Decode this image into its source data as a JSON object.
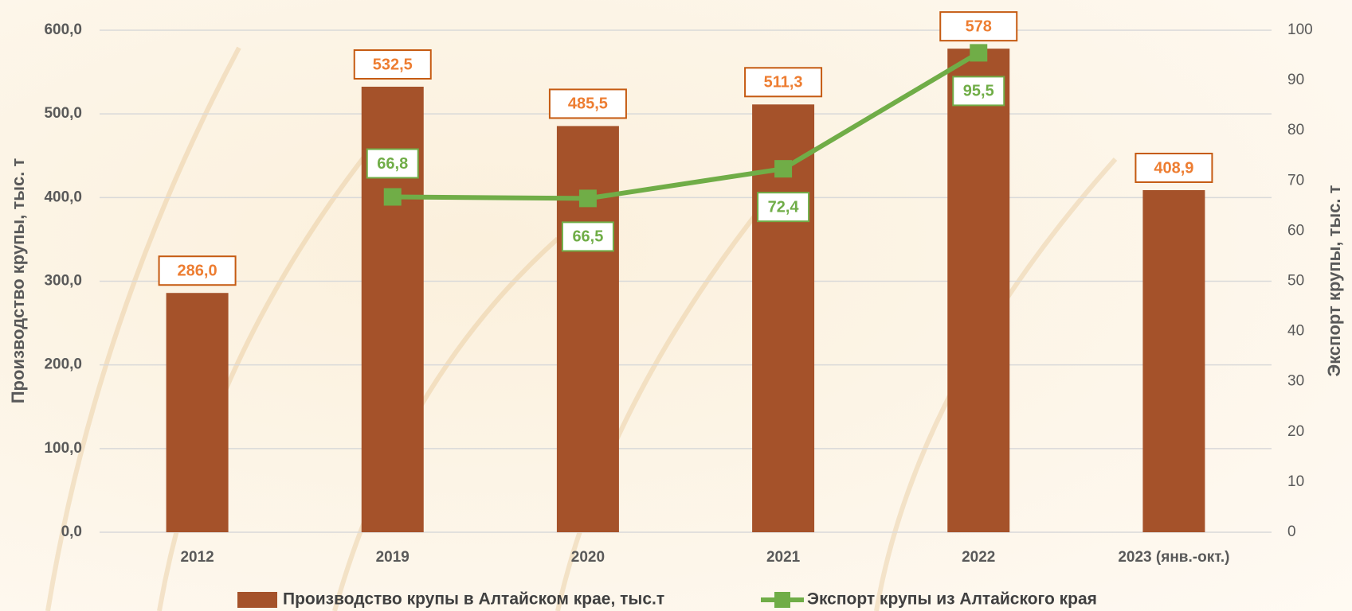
{
  "chart_data": {
    "type": "bar",
    "categories": [
      "2012",
      "2019",
      "2020",
      "2021",
      "2022",
      "2023 (янв.-окт.)"
    ],
    "ylabel": "Производство крупы, тыс. т",
    "y2label": "Экспорт крупы, тыс. т",
    "ylim": [
      0,
      600
    ],
    "yticks": [
      {
        "value": 0,
        "label": "0,0"
      },
      {
        "value": 100,
        "label": "100,0"
      },
      {
        "value": 200,
        "label": "200,0"
      },
      {
        "value": 300,
        "label": "300,0"
      },
      {
        "value": 400,
        "label": "400,0"
      },
      {
        "value": 500,
        "label": "500,0"
      },
      {
        "value": 600,
        "label": "600,0"
      }
    ],
    "y2lim": [
      0,
      100
    ],
    "y2ticks": [
      0,
      10,
      20,
      30,
      40,
      50,
      60,
      70,
      80,
      90,
      100
    ],
    "grid": true,
    "legend": "bottom",
    "series": [
      {
        "name": "Производство крупы в Алтайском крае, тыс.т",
        "type": "bar",
        "color": "#a5522a",
        "values": [
          286.0,
          532.5,
          485.5,
          511.3,
          578,
          408.9
        ],
        "value_labels": [
          "286,0",
          "532,5",
          "485,5",
          "511,3",
          "578",
          "408,9"
        ]
      },
      {
        "name": "Экспорт крупы из Алтайского края",
        "type": "line",
        "axis": "y2",
        "color": "#70ad47",
        "values": [
          null,
          66.8,
          66.5,
          72.4,
          95.5,
          null
        ],
        "value_labels": [
          null,
          "66,8",
          "66,5",
          "72,4",
          "95,5",
          null
        ]
      }
    ]
  }
}
